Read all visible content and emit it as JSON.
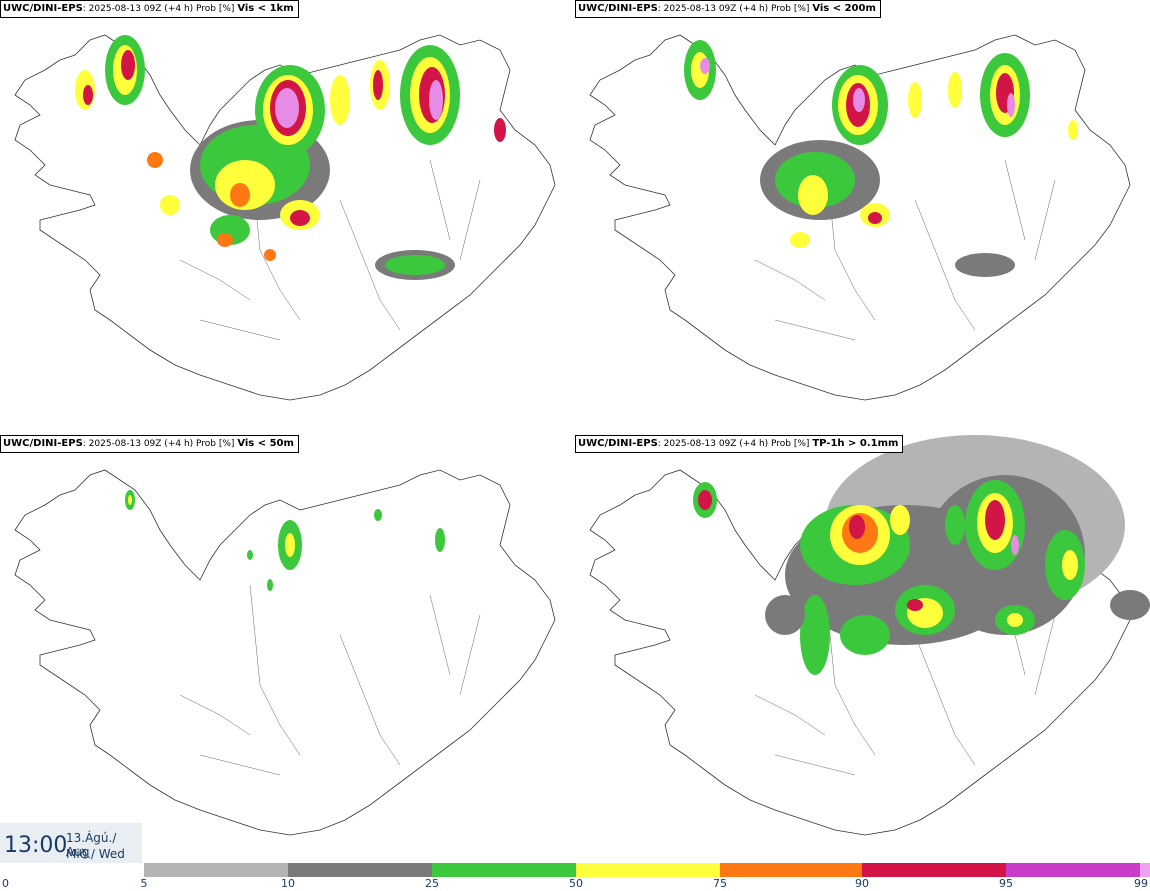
{
  "panels": [
    {
      "model": "UWC/DINI-EPS",
      "run": ": 2025-08-13 09Z (+4 h) Prob [%] ",
      "variable": "Vis < 1km"
    },
    {
      "model": "UWC/DINI-EPS",
      "run": ": 2025-08-13 09Z (+4 h) Prob [%] ",
      "variable": "Vis < 200m"
    },
    {
      "model": "UWC/DINI-EPS",
      "run": ": 2025-08-13 09Z (+4 h) Prob [%] ",
      "variable": "Vis < 50m"
    },
    {
      "model": "UWC/DINI-EPS",
      "run": ": 2025-08-13 09Z (+4 h) Prob [%] ",
      "variable": "TP-1h > 0.1mm"
    }
  ],
  "valid_time": {
    "time": "13:00",
    "date_line1": "13.Ágú./ Aug",
    "date_line2": "Mið./ Wed"
  },
  "legend": {
    "ticks": [
      "0",
      "5",
      "10",
      "25",
      "50",
      "75",
      "90",
      "95",
      "99"
    ],
    "colors": [
      "#ffffff",
      "#b4b4b4",
      "#7a7a7a",
      "#3cc83c",
      "#ffff3c",
      "#ff7814",
      "#d21446",
      "#c83cc8",
      "#f0a0f0"
    ]
  }
}
